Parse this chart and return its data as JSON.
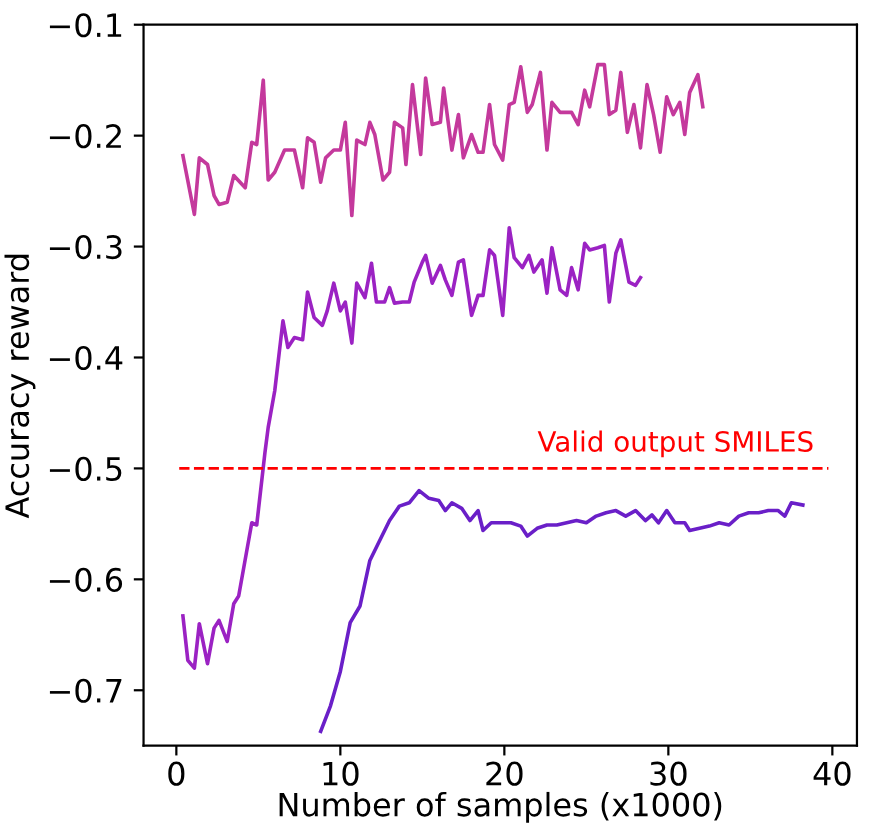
{
  "chart_data": {
    "type": "line",
    "xlabel": "Number of samples (x1000)",
    "ylabel": "Accuracy reward",
    "xlim": [
      -2,
      41.5
    ],
    "ylim": [
      -0.75,
      -0.1
    ],
    "xticks": [
      0,
      10,
      20,
      30,
      40
    ],
    "yticks": [
      {
        "value": -0.1,
        "label": "−0.1"
      },
      {
        "value": -0.2,
        "label": "−0.2"
      },
      {
        "value": -0.3,
        "label": "−0.3"
      },
      {
        "value": -0.4,
        "label": "−0.4"
      },
      {
        "value": -0.5,
        "label": "−0.5"
      },
      {
        "value": -0.6,
        "label": "−0.6"
      },
      {
        "value": -0.7,
        "label": "−0.7"
      }
    ],
    "grid": false,
    "line_style": "solid",
    "marker": "none",
    "ref_lines": [
      {
        "axis": "y",
        "value": -0.5,
        "label": "Valid output SMILES",
        "color": "#ff0000",
        "line_style": "dashed"
      }
    ],
    "series": [
      {
        "color": "#6a1fc8",
        "x": [
          8.8,
          9.4,
          10.0,
          10.6,
          11.2,
          11.8,
          12.4,
          13.0,
          13.6,
          14.2,
          14.8,
          15.4,
          16.0,
          16.4,
          16.8,
          17.4,
          17.9,
          18.4,
          18.7,
          19.2,
          19.8,
          20.4,
          21.0,
          21.4,
          22.0,
          22.6,
          23.2,
          23.8,
          24.4,
          25.0,
          25.6,
          26.2,
          26.8,
          27.4,
          28.0,
          28.6,
          29.0,
          29.4,
          29.9,
          30.4,
          31.0,
          31.3,
          31.9,
          32.5,
          33.1,
          33.7,
          34.3,
          34.9,
          35.5,
          36.1,
          36.7,
          37.1,
          37.5,
          38.2
        ],
        "values": [
          -0.737,
          -0.714,
          -0.683,
          -0.639,
          -0.624,
          -0.583,
          -0.565,
          -0.547,
          -0.534,
          -0.531,
          -0.52,
          -0.527,
          -0.529,
          -0.538,
          -0.531,
          -0.536,
          -0.547,
          -0.538,
          -0.556,
          -0.549,
          -0.549,
          -0.549,
          -0.552,
          -0.561,
          -0.554,
          -0.551,
          -0.551,
          -0.549,
          -0.547,
          -0.549,
          -0.543,
          -0.54,
          -0.538,
          -0.543,
          -0.538,
          -0.547,
          -0.542,
          -0.549,
          -0.538,
          -0.549,
          -0.549,
          -0.556,
          -0.554,
          -0.552,
          -0.549,
          -0.551,
          -0.543,
          -0.54,
          -0.54,
          -0.538,
          -0.538,
          -0.543,
          -0.531,
          -0.533
        ]
      },
      {
        "color": "#9b22c3",
        "x": [
          0.4,
          0.7,
          1.1,
          1.4,
          1.9,
          2.3,
          2.6,
          3.1,
          3.5,
          3.8,
          4.6,
          4.9,
          5.4,
          5.6,
          6.0,
          6.5,
          6.8,
          7.2,
          7.7,
          8.0,
          8.4,
          8.9,
          9.2,
          9.6,
          10.0,
          10.3,
          10.7,
          11.0,
          11.5,
          11.9,
          12.2,
          12.7,
          13.0,
          13.3,
          13.8,
          14.2,
          14.5,
          15.0,
          15.2,
          15.6,
          16.1,
          16.4,
          16.8,
          17.2,
          17.5,
          18.0,
          18.4,
          18.7,
          19.1,
          19.4,
          19.9,
          20.3,
          20.6,
          21.1,
          21.5,
          21.8,
          22.3,
          22.6,
          22.9,
          23.4,
          23.8,
          24.1,
          24.5,
          24.9,
          25.2,
          25.7,
          26.1,
          26.4,
          26.8,
          27.1,
          27.6,
          28.0,
          28.3
        ],
        "values": [
          -0.633,
          -0.673,
          -0.68,
          -0.64,
          -0.676,
          -0.644,
          -0.637,
          -0.656,
          -0.622,
          -0.615,
          -0.549,
          -0.551,
          -0.486,
          -0.463,
          -0.43,
          -0.367,
          -0.391,
          -0.382,
          -0.384,
          -0.341,
          -0.364,
          -0.371,
          -0.358,
          -0.333,
          -0.358,
          -0.35,
          -0.387,
          -0.333,
          -0.346,
          -0.315,
          -0.35,
          -0.35,
          -0.337,
          -0.351,
          -0.35,
          -0.35,
          -0.332,
          -0.314,
          -0.308,
          -0.333,
          -0.317,
          -0.33,
          -0.344,
          -0.314,
          -0.312,
          -0.362,
          -0.344,
          -0.344,
          -0.303,
          -0.308,
          -0.362,
          -0.283,
          -0.31,
          -0.319,
          -0.308,
          -0.323,
          -0.312,
          -0.342,
          -0.301,
          -0.339,
          -0.344,
          -0.319,
          -0.339,
          -0.297,
          -0.303,
          -0.301,
          -0.299,
          -0.35,
          -0.306,
          -0.294,
          -0.332,
          -0.335,
          -0.328
        ]
      },
      {
        "color": "#c4399c",
        "x": [
          0.4,
          1.1,
          1.4,
          1.9,
          2.3,
          2.6,
          3.1,
          3.5,
          4.2,
          4.6,
          4.9,
          5.3,
          5.6,
          6.0,
          6.6,
          7.2,
          7.7,
          8.0,
          8.4,
          8.8,
          9.1,
          9.6,
          10.0,
          10.3,
          10.7,
          11.0,
          11.5,
          11.8,
          12.1,
          12.6,
          13.0,
          13.3,
          13.8,
          14.0,
          14.4,
          14.9,
          15.2,
          15.6,
          16.1,
          16.3,
          16.8,
          17.2,
          17.5,
          18.0,
          18.4,
          18.7,
          19.1,
          19.4,
          19.9,
          20.3,
          20.6,
          21.0,
          21.4,
          21.7,
          22.2,
          22.6,
          22.9,
          23.4,
          24.1,
          24.5,
          24.9,
          25.2,
          25.7,
          26.1,
          26.4,
          26.8,
          27.1,
          27.5,
          27.9,
          28.3,
          28.7,
          29.1,
          29.5,
          29.9,
          30.3,
          30.7,
          31.0,
          31.3,
          31.8,
          32.1
        ],
        "values": [
          -0.218,
          -0.271,
          -0.22,
          -0.226,
          -0.254,
          -0.262,
          -0.26,
          -0.236,
          -0.247,
          -0.206,
          -0.208,
          -0.15,
          -0.24,
          -0.233,
          -0.213,
          -0.213,
          -0.247,
          -0.202,
          -0.206,
          -0.242,
          -0.22,
          -0.213,
          -0.213,
          -0.188,
          -0.272,
          -0.204,
          -0.208,
          -0.188,
          -0.199,
          -0.24,
          -0.233,
          -0.188,
          -0.193,
          -0.226,
          -0.154,
          -0.217,
          -0.148,
          -0.19,
          -0.188,
          -0.157,
          -0.213,
          -0.181,
          -0.22,
          -0.199,
          -0.215,
          -0.215,
          -0.172,
          -0.208,
          -0.222,
          -0.172,
          -0.17,
          -0.138,
          -0.179,
          -0.172,
          -0.143,
          -0.213,
          -0.17,
          -0.179,
          -0.179,
          -0.19,
          -0.159,
          -0.174,
          -0.136,
          -0.136,
          -0.181,
          -0.177,
          -0.143,
          -0.197,
          -0.172,
          -0.211,
          -0.154,
          -0.181,
          -0.215,
          -0.165,
          -0.181,
          -0.17,
          -0.199,
          -0.161,
          -0.145,
          -0.174
        ]
      }
    ]
  }
}
